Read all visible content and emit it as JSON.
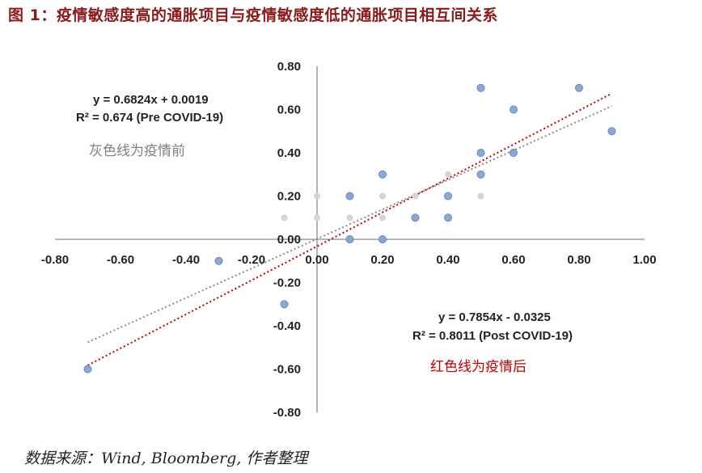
{
  "figure": {
    "title": "图 1：疫情敏感度高的通胀项目与疫情敏感度低的通胀项目相互间关系",
    "source": "数据来源：Wind, Bloomberg, 作者整理"
  },
  "chart_data": {
    "type": "scatter",
    "xlim": [
      -0.8,
      1.0
    ],
    "ylim": [
      -0.8,
      0.8
    ],
    "x_ticks": [
      "-0.80",
      "-0.60",
      "-0.40",
      "-0.20",
      "0.00",
      "0.20",
      "0.40",
      "0.60",
      "0.80",
      "1.00"
    ],
    "y_ticks": [
      "0.80",
      "0.60",
      "0.40",
      "0.20",
      "0.00",
      "-0.20",
      "-0.40",
      "-0.60",
      "-0.80"
    ],
    "grid": false,
    "series": [
      {
        "color": "#d4d4d4",
        "points": [
          {
            "x": -0.1,
            "y": 0.1
          },
          {
            "x": 0.0,
            "y": 0.2
          },
          {
            "x": 0.0,
            "y": 0.1
          },
          {
            "x": 0.1,
            "y": 0.2
          },
          {
            "x": 0.1,
            "y": 0.1
          },
          {
            "x": 0.2,
            "y": 0.2
          },
          {
            "x": 0.2,
            "y": 0.1
          },
          {
            "x": 0.3,
            "y": 0.2
          },
          {
            "x": 0.4,
            "y": 0.3
          },
          {
            "x": 0.5,
            "y": 0.2
          },
          {
            "x": 0.1,
            "y": 0.0
          },
          {
            "x": 0.2,
            "y": 0.0
          }
        ]
      },
      {
        "color": "#7f9fcf",
        "points": [
          {
            "x": -0.7,
            "y": -0.6
          },
          {
            "x": -0.3,
            "y": -0.1
          },
          {
            "x": -0.1,
            "y": -0.3
          },
          {
            "x": 0.1,
            "y": 0.0
          },
          {
            "x": 0.1,
            "y": 0.2
          },
          {
            "x": 0.2,
            "y": 0.0
          },
          {
            "x": 0.2,
            "y": 0.3
          },
          {
            "x": 0.3,
            "y": 0.1
          },
          {
            "x": 0.4,
            "y": 0.2
          },
          {
            "x": 0.4,
            "y": 0.1
          },
          {
            "x": 0.5,
            "y": 0.4
          },
          {
            "x": 0.5,
            "y": 0.3
          },
          {
            "x": 0.5,
            "y": 0.7
          },
          {
            "x": 0.6,
            "y": 0.6
          },
          {
            "x": 0.6,
            "y": 0.4
          },
          {
            "x": 0.8,
            "y": 0.7
          },
          {
            "x": 0.9,
            "y": 0.5
          }
        ]
      }
    ],
    "trendlines": [
      {
        "color": "#8c8c8c",
        "slope": 0.6824,
        "intercept": 0.0019,
        "x_range": [
          -0.7,
          0.9
        ]
      },
      {
        "color": "#c00000",
        "slope": 0.7854,
        "intercept": -0.0325,
        "x_range": [
          -0.7,
          0.9
        ]
      }
    ],
    "annotations": {
      "pre_eq": "y = 0.6824x + 0.0019",
      "pre_r2": "R² = 0.674 (Pre COVID-19)",
      "pre_note": "灰色线为疫情前",
      "post_eq": "y = 0.7854x - 0.0325",
      "post_r2": "R² = 0.8011 (Post COVID-19)",
      "post_note": "红色线为疫情后"
    }
  }
}
